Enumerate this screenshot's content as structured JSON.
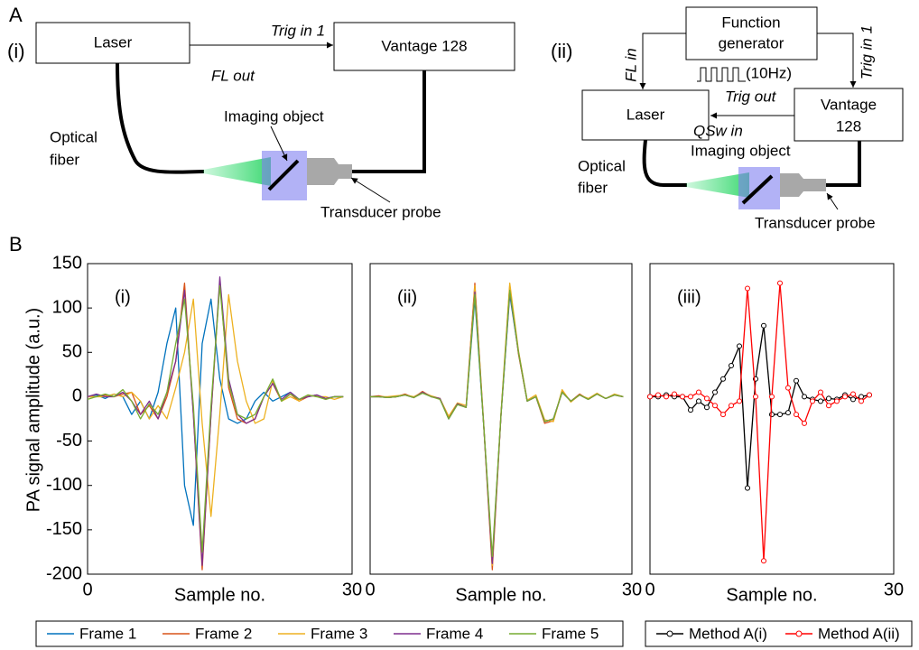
{
  "figure": {
    "panel_A": "A",
    "panel_B": "B",
    "setup_i": {
      "label": "(i)",
      "laser": "Laser",
      "vantage": "Vantage 128",
      "trig_in": "Trig in 1",
      "fl_out": "FL out",
      "optical_fiber": [
        "Optical",
        "fiber"
      ],
      "imaging_object": "Imaging object",
      "transducer_probe": "Transducer probe"
    },
    "setup_ii": {
      "label": "(ii)",
      "function_generator": [
        "Function",
        "generator"
      ],
      "fl_in": "FL in",
      "trig_in": "Trig in 1",
      "frequency": "(10Hz)",
      "trig_out": "Trig out",
      "laser": "Laser",
      "vantage": [
        "Vantage",
        "128"
      ],
      "qsw_in": "QSw in",
      "imaging_object": "Imaging object",
      "optical_fiber": [
        "Optical",
        "fiber"
      ],
      "transducer_probe": "Transducer probe"
    }
  },
  "chart_data": [
    {
      "type": "line",
      "panel_label": "(i)",
      "xlabel": "Sample no.",
      "ylabel": "PA signal amplitude (a.u.)",
      "x": [
        0,
        1,
        2,
        3,
        4,
        5,
        6,
        7,
        8,
        9,
        10,
        11,
        12,
        13,
        14,
        15,
        16,
        17,
        18,
        19,
        20,
        21,
        22,
        23,
        24,
        25,
        26,
        27,
        28,
        29
      ],
      "xlim": [
        0,
        30
      ],
      "xticks": [
        0,
        30
      ],
      "ylim": [
        -200,
        150
      ],
      "yticks": [
        -200,
        -150,
        -100,
        -50,
        0,
        50,
        100,
        150
      ],
      "legend": true,
      "series": [
        {
          "name": "Frame 1",
          "color": "#0072bd",
          "values": [
            0,
            2,
            -2,
            3,
            0,
            -20,
            -5,
            -25,
            5,
            60,
            100,
            -100,
            -145,
            60,
            110,
            20,
            -25,
            -30,
            -25,
            -5,
            5,
            -5,
            0,
            5,
            -3,
            0,
            2,
            -2,
            0,
            0
          ]
        },
        {
          "name": "Frame 2",
          "color": "#d95319",
          "values": [
            0,
            0,
            2,
            0,
            3,
            5,
            -20,
            -10,
            -25,
            0,
            40,
            128,
            -20,
            -195,
            -20,
            130,
            10,
            -25,
            -30,
            -25,
            0,
            15,
            -5,
            3,
            -5,
            0,
            2,
            -3,
            0,
            0
          ]
        },
        {
          "name": "Frame 3",
          "color": "#edb120",
          "values": [
            0,
            0,
            0,
            3,
            0,
            5,
            -5,
            -25,
            -10,
            -25,
            10,
            50,
            110,
            -30,
            -135,
            -20,
            115,
            40,
            -5,
            -30,
            -25,
            18,
            -5,
            0,
            -5,
            2,
            0,
            0,
            -3,
            0
          ]
        },
        {
          "name": "Frame 4",
          "color": "#7e2f8e",
          "values": [
            0,
            3,
            0,
            0,
            5,
            -5,
            -20,
            -5,
            -25,
            5,
            40,
            120,
            -20,
            -190,
            -20,
            135,
            20,
            -20,
            -30,
            -25,
            0,
            15,
            -3,
            5,
            -3,
            0,
            2,
            -2,
            0,
            0
          ]
        },
        {
          "name": "Frame 5",
          "color": "#77ac30",
          "values": [
            -3,
            0,
            3,
            0,
            8,
            -5,
            -25,
            -8,
            -20,
            5,
            60,
            110,
            -10,
            -175,
            -10,
            125,
            15,
            -20,
            -25,
            -20,
            0,
            20,
            -5,
            3,
            -3,
            2,
            0,
            -3,
            0,
            0
          ]
        }
      ]
    },
    {
      "type": "line",
      "panel_label": "(ii)",
      "xlabel": "Sample no.",
      "x": [
        0,
        1,
        2,
        3,
        4,
        5,
        6,
        7,
        8,
        9,
        10,
        11,
        12,
        13,
        14,
        15,
        16,
        17,
        18,
        19,
        20,
        21,
        22,
        23,
        24,
        25,
        26,
        27,
        28,
        29
      ],
      "xlim": [
        0,
        30
      ],
      "xticks": [
        0,
        30
      ],
      "ylim": [
        -200,
        150
      ],
      "series": [
        {
          "color": "#0072bd",
          "values": [
            0,
            0,
            -1,
            0,
            2,
            -1,
            5,
            0,
            -2,
            -25,
            -8,
            -12,
            110,
            -30,
            -185,
            -20,
            115,
            50,
            -5,
            0,
            -28,
            -25,
            5,
            -5,
            2,
            -3,
            3,
            -2,
            2,
            0
          ]
        },
        {
          "color": "#d95319",
          "values": [
            0,
            1,
            -1,
            0,
            3,
            -1,
            6,
            0,
            -2,
            -24,
            -8,
            -12,
            128,
            -30,
            -195,
            -20,
            125,
            48,
            -5,
            0,
            -30,
            -27,
            6,
            -5,
            3,
            -3,
            3,
            -2,
            2,
            0
          ]
        },
        {
          "color": "#edb120",
          "values": [
            0,
            0,
            0,
            1,
            2,
            0,
            5,
            1,
            -2,
            -22,
            -7,
            -10,
            125,
            -28,
            -190,
            -18,
            128,
            52,
            -4,
            2,
            -26,
            -28,
            8,
            -6,
            2,
            -2,
            4,
            -2,
            3,
            0
          ]
        },
        {
          "color": "#7e2f8e",
          "values": [
            0,
            0,
            -1,
            0,
            2,
            -1,
            5,
            0,
            -2,
            -25,
            -8,
            -12,
            118,
            -30,
            -188,
            -20,
            118,
            50,
            -5,
            0,
            -28,
            -25,
            5,
            -5,
            2,
            -3,
            3,
            -2,
            2,
            0
          ]
        },
        {
          "color": "#77ac30",
          "values": [
            0,
            0,
            -1,
            0,
            2,
            -1,
            4,
            0,
            -3,
            -25,
            -9,
            -12,
            115,
            -30,
            -180,
            -20,
            120,
            50,
            -5,
            0,
            -28,
            -25,
            5,
            -5,
            2,
            -3,
            3,
            -2,
            2,
            0
          ]
        }
      ]
    },
    {
      "type": "line",
      "panel_label": "(iii)",
      "xlabel": "Sample no.",
      "x": [
        0,
        1,
        2,
        3,
        4,
        5,
        6,
        7,
        8,
        9,
        10,
        11,
        12,
        13,
        14,
        15,
        16,
        17,
        18,
        19,
        20,
        21,
        22,
        23,
        24,
        25,
        26,
        27
      ],
      "xlim": [
        0,
        30
      ],
      "xticks": [
        0,
        30
      ],
      "ylim": [
        -200,
        150
      ],
      "legend": true,
      "markers": true,
      "series": [
        {
          "name": "Method A(i)",
          "color": "#000000",
          "values": [
            0,
            0,
            2,
            0,
            0,
            -15,
            -5,
            -12,
            5,
            20,
            35,
            57,
            -103,
            20,
            80,
            -20,
            -20,
            -18,
            18,
            0,
            -3,
            -5,
            -2,
            -3,
            2,
            -3,
            0,
            2
          ]
        },
        {
          "name": "Method A(ii)",
          "color": "#ff0000",
          "values": [
            0,
            2,
            0,
            3,
            0,
            0,
            5,
            -2,
            -10,
            -20,
            -10,
            -5,
            122,
            0,
            -185,
            0,
            128,
            10,
            -20,
            -30,
            -5,
            5,
            -10,
            -5,
            0,
            3,
            -5,
            2
          ]
        }
      ]
    }
  ]
}
